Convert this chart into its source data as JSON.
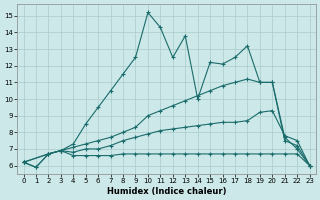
{
  "xlabel": "Humidex (Indice chaleur)",
  "bg_color": "#cce8e8",
  "grid_color": "#aacccc",
  "line_color": "#1a6b6b",
  "xlim": [
    -0.5,
    23.5
  ],
  "ylim": [
    5.5,
    15.7
  ],
  "xticks": [
    0,
    1,
    2,
    3,
    4,
    5,
    6,
    7,
    8,
    9,
    10,
    11,
    12,
    13,
    14,
    15,
    16,
    17,
    18,
    19,
    20,
    21,
    22,
    23
  ],
  "yticks": [
    6,
    7,
    8,
    9,
    10,
    11,
    12,
    13,
    14,
    15
  ],
  "line_jagged_x": [
    0,
    2,
    3,
    4,
    5,
    6,
    7,
    8,
    9,
    10,
    11,
    12,
    13,
    14,
    15,
    16,
    17,
    18,
    19,
    20,
    21,
    22,
    23
  ],
  "line_jagged_y": [
    6.2,
    6.7,
    6.9,
    7.3,
    8.5,
    9.5,
    10.5,
    11.5,
    12.5,
    15.2,
    14.3,
    12.5,
    13.8,
    10.0,
    12.2,
    12.1,
    12.5,
    13.2,
    11.0,
    11.0,
    7.7,
    7.0,
    6.0
  ],
  "line_diag_x": [
    0,
    2,
    3,
    4,
    5,
    6,
    7,
    8,
    9,
    10,
    11,
    12,
    13,
    14,
    15,
    16,
    17,
    18,
    19,
    20,
    21,
    22,
    23
  ],
  "line_diag_y": [
    6.2,
    6.7,
    6.9,
    7.1,
    7.3,
    7.5,
    7.7,
    8.0,
    8.3,
    9.0,
    9.3,
    9.6,
    9.9,
    10.2,
    10.5,
    10.8,
    11.0,
    11.2,
    11.0,
    11.0,
    7.5,
    7.2,
    6.0
  ],
  "line_mid_x": [
    0,
    1,
    2,
    3,
    4,
    5,
    6,
    7,
    8,
    9,
    10,
    11,
    12,
    13,
    14,
    15,
    16,
    17,
    18,
    19,
    20,
    21,
    22,
    23
  ],
  "line_mid_y": [
    6.2,
    5.9,
    6.7,
    6.9,
    6.8,
    7.0,
    7.0,
    7.2,
    7.5,
    7.7,
    7.9,
    8.1,
    8.2,
    8.3,
    8.4,
    8.5,
    8.6,
    8.6,
    8.7,
    9.2,
    9.3,
    7.8,
    7.5,
    6.0
  ],
  "line_flat_x": [
    0,
    1,
    2,
    3,
    4,
    5,
    6,
    7,
    8,
    9,
    10,
    11,
    12,
    13,
    14,
    15,
    16,
    17,
    18,
    19,
    20,
    21,
    22,
    23
  ],
  "line_flat_y": [
    6.2,
    5.9,
    6.7,
    6.9,
    6.6,
    6.6,
    6.6,
    6.6,
    6.7,
    6.7,
    6.7,
    6.7,
    6.7,
    6.7,
    6.7,
    6.7,
    6.7,
    6.7,
    6.7,
    6.7,
    6.7,
    6.7,
    6.7,
    6.0
  ]
}
